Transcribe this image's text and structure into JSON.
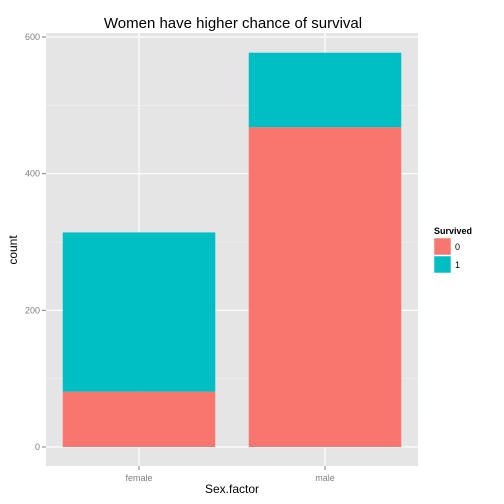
{
  "chart_data": {
    "type": "bar",
    "stacked": true,
    "title": "Women have higher chance of survival",
    "xlabel": "Sex.factor",
    "ylabel": "count",
    "categories": [
      "female",
      "male"
    ],
    "series": [
      {
        "name": "0",
        "values": [
          81,
          468
        ],
        "color": "#F8766D"
      },
      {
        "name": "1",
        "values": [
          233,
          109
        ],
        "color": "#00BFC4"
      }
    ],
    "ylim": [
      0,
      620
    ],
    "yticks": [
      0,
      200,
      400,
      600
    ],
    "grid": true,
    "legend": {
      "title": "Survived",
      "position": "right"
    }
  }
}
